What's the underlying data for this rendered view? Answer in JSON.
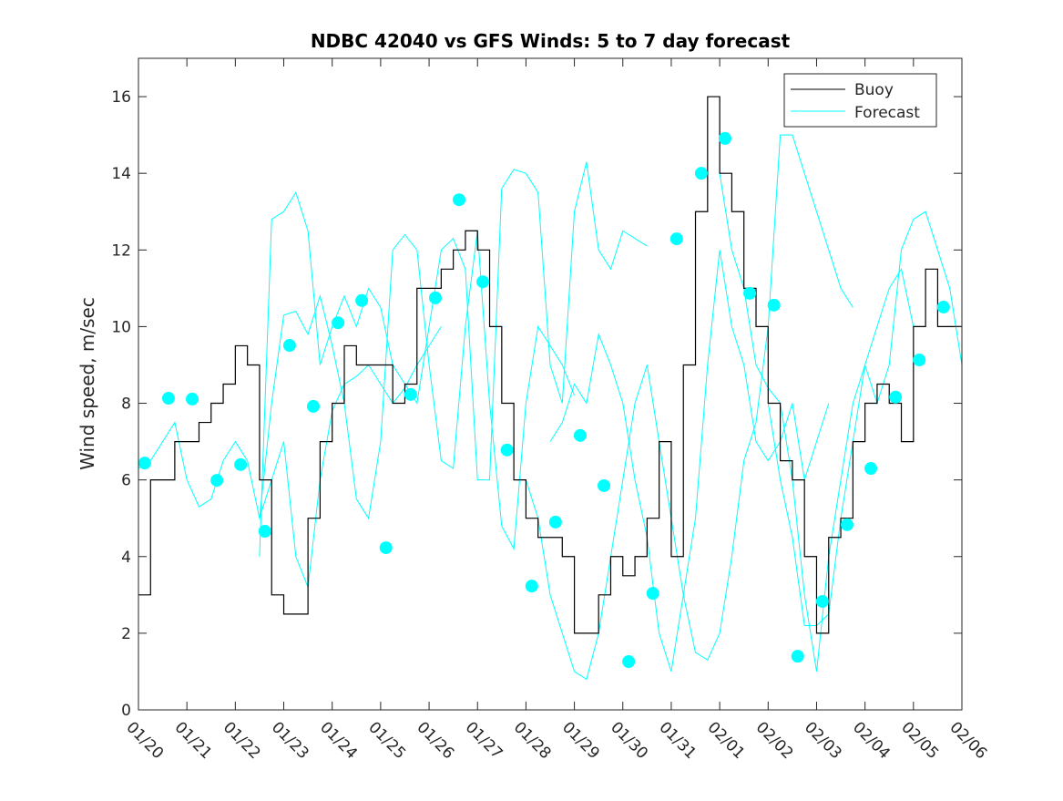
{
  "chart_data": {
    "type": "line",
    "title": "NDBC 42040 vs GFS Winds: 5 to 7 day forecast",
    "xlabel": "",
    "ylabel": "Wind speed, m/sec",
    "xlim": [
      0,
      17
    ],
    "ylim": [
      0,
      17
    ],
    "x_unit": "days since 01/20",
    "x_tick_labels": [
      "01/20",
      "01/21",
      "01/22",
      "01/23",
      "01/24",
      "01/25",
      "01/26",
      "01/27",
      "01/28",
      "01/29",
      "01/30",
      "01/31",
      "02/01",
      "02/02",
      "02/03",
      "02/04",
      "02/05",
      "02/06"
    ],
    "y_ticks": [
      0,
      2,
      4,
      6,
      8,
      10,
      12,
      14,
      16
    ],
    "grid": false,
    "legend": {
      "placement": "top-right",
      "entries": [
        "Buoy",
        "Forecast"
      ]
    },
    "colors": {
      "buoy": "#000000",
      "forecast": "#00ffff"
    },
    "buoy": {
      "name": "Buoy",
      "x_start": 0,
      "x_step": 0.25,
      "values": [
        3,
        6,
        6,
        7,
        7,
        7.5,
        8,
        8.5,
        9.5,
        9,
        6,
        3,
        2.5,
        2.5,
        5,
        7,
        8,
        9.5,
        9,
        9,
        9,
        8,
        8.5,
        11,
        11,
        11.5,
        12,
        12.5,
        12,
        10,
        8,
        6,
        5,
        4.5,
        4.5,
        4,
        2,
        2,
        3,
        4,
        3.5,
        4,
        5,
        7,
        4,
        9,
        13,
        16,
        14,
        13,
        11,
        10,
        8,
        6.5,
        6,
        4,
        2,
        4.5,
        5,
        7,
        8,
        8.5,
        8,
        7,
        10,
        11.5,
        10,
        10,
        10
      ]
    },
    "forecast_lines": [
      {
        "x_start": 0,
        "x_step": 0.25,
        "values": [
          6.3,
          6.5,
          7,
          7.5,
          6,
          5.3,
          5.5,
          6.5,
          7,
          6.5,
          5,
          6,
          7,
          4,
          3.2,
          6,
          7.8,
          8.5,
          8.7,
          9,
          8.5,
          8,
          8.4,
          9,
          9.5,
          10
        ]
      },
      {
        "x_start": 2.5,
        "x_step": 0.25,
        "values": [
          4,
          12.8,
          13,
          13.5,
          12.5,
          9,
          10,
          10.8,
          10,
          11,
          10.5,
          9,
          8.5,
          8,
          10,
          12,
          12.3,
          11.5,
          6,
          6,
          13.6,
          14.1,
          14,
          13.5,
          9,
          8,
          13,
          14.3,
          12,
          11.5,
          12.5,
          12.3,
          12.1
        ]
      },
      {
        "x_start": 2.5,
        "x_step": 0.25,
        "values": [
          5,
          8,
          10.3,
          10.4,
          9.8,
          10.8,
          9.5,
          8,
          5.5,
          5,
          7,
          12,
          12.4,
          12,
          9,
          6.5,
          6.3,
          10,
          12.5,
          8,
          4.8,
          4.2,
          8,
          10,
          9.5,
          9,
          8.2
        ]
      },
      {
        "x_start": 8,
        "x_step": 0.25,
        "values": [
          6,
          5,
          3,
          2,
          1,
          0.8,
          2,
          4,
          6,
          8,
          9,
          7,
          5,
          3,
          1.5,
          1.3,
          2,
          4,
          6.5,
          7.5,
          10,
          15,
          15,
          14,
          13,
          12,
          11,
          10.5
        ]
      },
      {
        "x_start": 8.5,
        "x_step": 0.25,
        "values": [
          7,
          7.5,
          8.5,
          8,
          9.8,
          9,
          8,
          6,
          4.5,
          2,
          1,
          3,
          5,
          9,
          12,
          10,
          9,
          7,
          6.5,
          7,
          8,
          6,
          7,
          8
        ]
      },
      {
        "x_start": 12,
        "x_step": 0.25,
        "values": [
          14,
          12,
          11,
          9,
          8.4,
          8,
          6,
          3,
          1,
          4,
          6,
          8,
          9,
          10,
          11,
          11.5,
          10
        ]
      },
      {
        "x_start": 13,
        "x_step": 0.25,
        "values": [
          8,
          6,
          4.5,
          2.2,
          2.2,
          2.5,
          5,
          7,
          9,
          8,
          9,
          12,
          12.8,
          13,
          12,
          11,
          9
        ]
      }
    ],
    "forecast_points": {
      "x": [
        0.13,
        0.62,
        1.11,
        1.62,
        2.11,
        2.61,
        3.12,
        3.61,
        4.12,
        4.61,
        5.11,
        5.62,
        6.13,
        6.62,
        7.11,
        7.61,
        8.12,
        8.61,
        9.12,
        9.61,
        10.12,
        10.62,
        11.11,
        11.62,
        12.11,
        12.62,
        13.12,
        13.61,
        14.12,
        14.63,
        15.12,
        15.63,
        16.12,
        16.62
      ],
      "y": [
        6.44,
        8.13,
        8.11,
        5.99,
        6.4,
        4.66,
        9.51,
        7.92,
        10.1,
        10.68,
        4.23,
        8.23,
        10.75,
        13.31,
        11.17,
        6.78,
        3.23,
        4.9,
        7.16,
        5.85,
        1.26,
        3.04,
        12.29,
        14.0,
        14.91,
        10.87,
        10.56,
        1.4,
        2.83,
        4.83,
        6.3,
        8.16,
        9.13,
        10.51
      ]
    }
  }
}
